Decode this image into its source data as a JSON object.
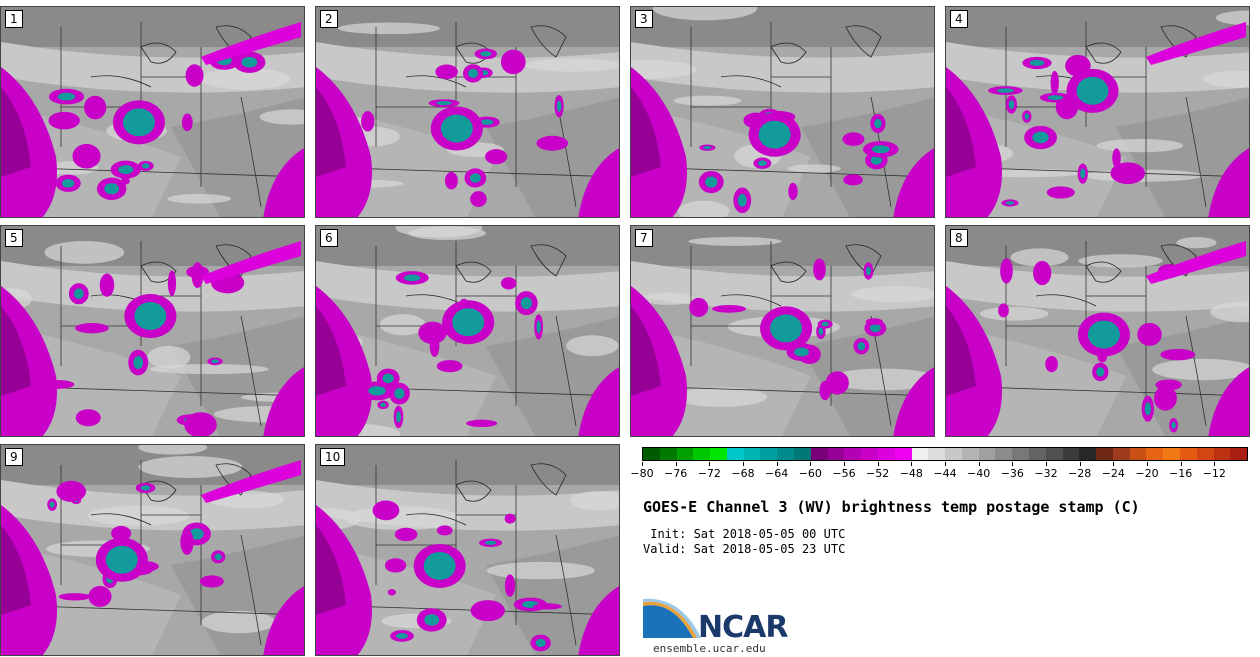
{
  "panels": [
    {
      "label": "1"
    },
    {
      "label": "2"
    },
    {
      "label": "3"
    },
    {
      "label": "4"
    },
    {
      "label": "5"
    },
    {
      "label": "6"
    },
    {
      "label": "7"
    },
    {
      "label": "8"
    },
    {
      "label": "9"
    },
    {
      "label": "10"
    }
  ],
  "colorbar": {
    "ticks": [
      "−80",
      "−76",
      "−72",
      "−68",
      "−64",
      "−60",
      "−56",
      "−52",
      "−48",
      "−44",
      "−40",
      "−36",
      "−32",
      "−28",
      "−24",
      "−20",
      "−16",
      "−12"
    ],
    "colors": [
      "#005a00",
      "#007a00",
      "#00a000",
      "#00c800",
      "#00e600",
      "#00c8c8",
      "#00b4b4",
      "#00a0a0",
      "#008c8c",
      "#007878",
      "#780078",
      "#960096",
      "#b400b4",
      "#c800c8",
      "#dc00dc",
      "#f000f0",
      "#f0f0f0",
      "#dcdcdc",
      "#c8c8c8",
      "#b4b4b4",
      "#a0a0a0",
      "#8c8c8c",
      "#787878",
      "#646464",
      "#505050",
      "#3c3c3c",
      "#282828",
      "#6e2814",
      "#a03c1e",
      "#c85014",
      "#e66414",
      "#f07814",
      "#e65a14",
      "#d24614",
      "#be3214",
      "#aa1e14"
    ]
  },
  "title": "GOES-E Channel 3 (WV) brightness temp postage stamp (C)",
  "init": " Init: Sat 2018-05-05 00 UTC",
  "valid": "Valid: Sat 2018-05-05 23 UTC",
  "logo": {
    "text": "NCAR",
    "site": "ensemble.ucar.edu"
  }
}
